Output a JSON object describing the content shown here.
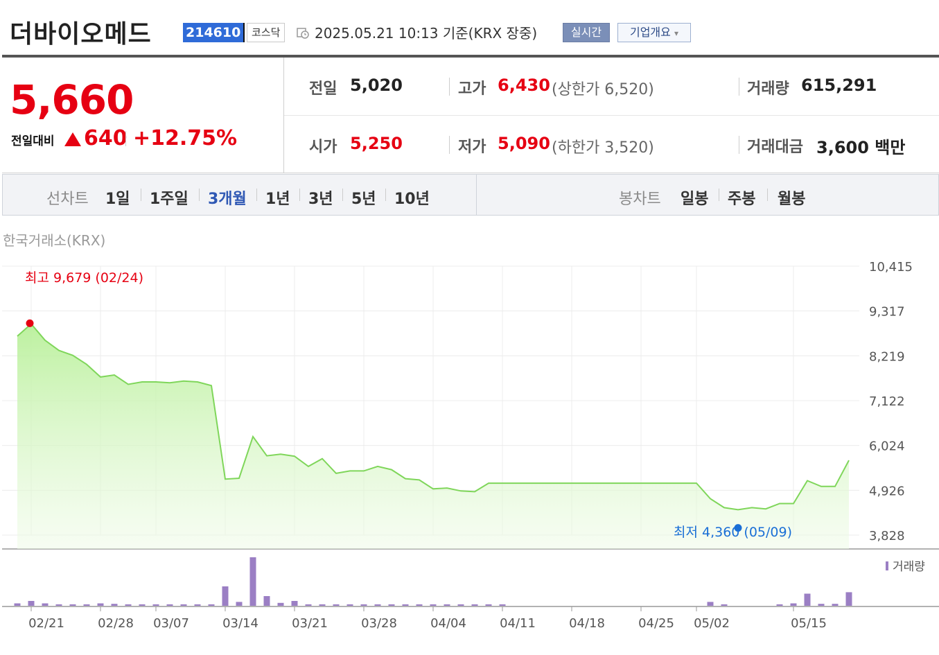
{
  "header": {
    "company_name": "더바이오메드",
    "stock_code": "214610",
    "market": "코스닥",
    "timestamp": "2025.05.21 10:13  기준(KRX 장중)",
    "realtime_label": "실시간",
    "overview_label": "기업개요",
    "overview_arrow": "▾"
  },
  "summary": {
    "price": "5,660",
    "prev_compare_label": "전일대비",
    "change": "640",
    "change_pct": "+12.75%",
    "prev_close_label": "전일",
    "prev_close": "5,020",
    "high_label": "고가",
    "high": "6,430",
    "upper_limit": "(상한가 6,520)",
    "volume_label": "거래량",
    "volume": "615,291",
    "open_label": "시가",
    "open": "5,250",
    "low_label": "저가",
    "low": "5,090",
    "lower_limit": "(하한가 3,520)",
    "amount_label": "거래대금",
    "amount": "3,600 백만"
  },
  "tabs": {
    "line_label": "선차트",
    "line_tabs": [
      "1일",
      "1주일",
      "3개월",
      "1년",
      "3년",
      "5년",
      "10년"
    ],
    "active": "3개월",
    "candle_label": "봉차트",
    "candle_tabs": [
      "일봉",
      "주봉",
      "월봉"
    ]
  },
  "exchange_label": "한국거래소(KRX)",
  "colors": {
    "up": "#e60012",
    "low_marker": "#1a6fd6",
    "line": "#7fd65a",
    "volume": "#9b7fc4",
    "active_tab": "#2f58b4"
  },
  "icons": {
    "clock": "clock-icon",
    "triangle": "up-triangle-icon"
  },
  "chart_data": {
    "type": "area",
    "y_ticks": [
      "10,415",
      "9,317",
      "8,219",
      "7,122",
      "6,024",
      "4,926",
      "3,828"
    ],
    "ylim": [
      3828,
      10415
    ],
    "x_labels": [
      "02/21",
      "02/28",
      "03/07",
      "03/14",
      "03/21",
      "03/28",
      "04/04",
      "04/11",
      "04/18",
      "04/25",
      "05/02",
      "05/15"
    ],
    "x": [
      "02/20",
      "02/21",
      "02/24",
      "02/25",
      "02/26",
      "02/27",
      "02/28",
      "03/04",
      "03/05",
      "03/06",
      "03/07",
      "03/10",
      "03/11",
      "03/12",
      "03/13",
      "03/14",
      "03/17",
      "03/18",
      "03/19",
      "03/20",
      "03/21",
      "03/24",
      "03/25",
      "03/26",
      "03/27",
      "03/28",
      "03/31",
      "04/01",
      "04/02",
      "04/03",
      "04/04",
      "04/07",
      "04/08",
      "04/09",
      "04/10",
      "04/11",
      "04/14",
      "04/15",
      "04/16",
      "04/17",
      "04/18",
      "04/21",
      "04/22",
      "04/23",
      "04/24",
      "04/25",
      "04/28",
      "04/29",
      "04/30",
      "05/02",
      "05/07",
      "05/08",
      "05/09",
      "05/12",
      "05/13",
      "05/14",
      "05/15",
      "05/16",
      "05/19",
      "05/20",
      "05/21"
    ],
    "close": [
      8700,
      9000,
      8600,
      8350,
      8230,
      8010,
      7700,
      7750,
      7520,
      7580,
      7580,
      7560,
      7600,
      7580,
      7490,
      5200,
      5220,
      6240,
      5770,
      5810,
      5760,
      5510,
      5700,
      5340,
      5400,
      5400,
      5510,
      5430,
      5210,
      5180,
      4960,
      4980,
      4910,
      4890,
      5100,
      5100,
      5100,
      5100,
      5100,
      5100,
      5100,
      5100,
      5100,
      5100,
      5100,
      5100,
      5100,
      5100,
      5100,
      5100,
      4720,
      4500,
      4450,
      4500,
      4470,
      4600,
      4600,
      5160,
      5020,
      5020,
      5660
    ],
    "volume_relative": [
      0.05,
      0.1,
      0.05,
      0.03,
      0.03,
      0.03,
      0.05,
      0.04,
      0.03,
      0.03,
      0.03,
      0.03,
      0.03,
      0.03,
      0.03,
      0.4,
      0.08,
      1.0,
      0.2,
      0.06,
      0.1,
      0.03,
      0.03,
      0.03,
      0.03,
      0.03,
      0.03,
      0.03,
      0.03,
      0.03,
      0.03,
      0.03,
      0.03,
      0.03,
      0.03,
      0.03,
      0,
      0,
      0,
      0,
      0,
      0,
      0,
      0,
      0,
      0,
      0,
      0,
      0,
      0,
      0.08,
      0.03,
      0,
      0,
      0,
      0.03,
      0.05,
      0.25,
      0.04,
      0.04,
      0.28
    ],
    "high_annotation": "최고 9,679 (02/24)",
    "high_value": 9679,
    "low_annotation": "최저 4,360 (05/09)",
    "low_value": 4360,
    "volume_legend": "거래량"
  }
}
